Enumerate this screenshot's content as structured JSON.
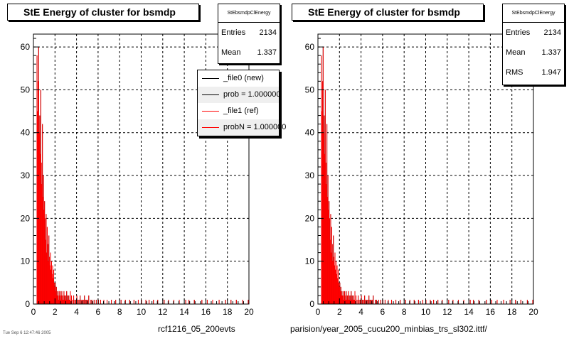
{
  "panels": [
    {
      "id": "left",
      "title": "StE Energy of cluster for bsmdp",
      "stats": {
        "name": "StEbsmdpClEnergy",
        "rows": [
          {
            "label": "Entries",
            "value": "2134"
          },
          {
            "label": "Mean",
            "value": "1.337"
          }
        ]
      },
      "legend": [
        {
          "label": "_file0 (new)",
          "color": "#000000"
        },
        {
          "label": "prob = 1.000000",
          "color": "#000000"
        },
        {
          "label": "_file1 (ref)",
          "color": "#ff0000"
        },
        {
          "label": "probN = 1.000000",
          "color": "#ff0000"
        }
      ],
      "footer": "rcf1216_05_200evts",
      "corner_text": "Tue Sep  6 12:47:46 2005"
    },
    {
      "id": "right",
      "title": "StE Energy of cluster for bsmdp",
      "stats": {
        "name": "StEbsmdpClEnergy",
        "rows": [
          {
            "label": "Entries",
            "value": "2134"
          },
          {
            "label": "Mean",
            "value": "1.337"
          },
          {
            "label": "RMS",
            "value": "1.947"
          }
        ]
      },
      "legend": [],
      "footer": "parision/year_2005_cucu200_minbias_trs_sl302.ittf/",
      "corner_text": ""
    }
  ],
  "chart_data": {
    "type": "bar",
    "title": "StE Energy of cluster for bsmdp",
    "xlim": [
      0,
      20
    ],
    "ylim": [
      0,
      63
    ],
    "xticks": [
      "0",
      "2",
      "4",
      "6",
      "8",
      "10",
      "12",
      "14",
      "16",
      "18",
      "20"
    ],
    "yticks": [
      "0",
      "10",
      "20",
      "30",
      "40",
      "50",
      "60"
    ],
    "grid": true,
    "bin_width": 0.05,
    "series": [
      {
        "name": "_file0 (new)",
        "color": "#000000"
      },
      {
        "name": "_file1 (ref)",
        "color": "#ff0000"
      }
    ],
    "x": [
      0.3,
      0.35,
      0.4,
      0.45,
      0.5,
      0.55,
      0.6,
      0.65,
      0.7,
      0.75,
      0.8,
      0.85,
      0.9,
      0.95,
      1.0,
      1.05,
      1.1,
      1.15,
      1.2,
      1.25,
      1.3,
      1.35,
      1.4,
      1.45,
      1.5,
      1.55,
      1.6,
      1.65,
      1.7,
      1.75,
      1.8,
      1.85,
      1.9,
      1.95,
      2.0,
      2.05,
      2.1,
      2.15,
      2.2,
      2.25,
      2.3,
      2.35,
      2.4,
      2.45,
      2.5,
      2.55,
      2.6,
      2.65,
      2.7,
      2.75,
      2.8,
      2.85,
      2.9,
      2.95,
      3.0,
      3.05,
      3.1,
      3.15,
      3.2,
      3.25,
      3.3,
      3.35,
      3.4,
      3.5,
      3.6,
      3.7,
      3.8,
      3.9,
      4.0,
      4.1,
      4.2,
      4.3,
      4.4,
      4.5,
      4.6,
      4.7,
      4.8,
      4.9,
      5.0,
      5.1,
      5.3,
      5.4,
      5.6,
      5.8,
      6.0,
      6.2,
      6.5,
      6.8,
      7.2,
      7.6,
      8.1,
      8.5,
      8.9,
      9.3,
      9.7,
      10.0,
      10.4,
      10.7,
      11.1,
      11.5,
      12.1,
      12.5,
      13.0,
      13.5,
      14.1,
      14.4,
      14.9,
      15.6,
      16.1,
      16.6,
      17.2,
      17.8,
      18.3,
      18.8,
      19.4,
      19.9
    ],
    "values": [
      58,
      45,
      52,
      60,
      40,
      44,
      35,
      50,
      33,
      28,
      42,
      25,
      30,
      22,
      24,
      20,
      15,
      21,
      12,
      18,
      14,
      10,
      16,
      11,
      9,
      12,
      8,
      10,
      7,
      9,
      6,
      8,
      5,
      4,
      5,
      3,
      4,
      2,
      3,
      2,
      1,
      3,
      2,
      3,
      1,
      2,
      3,
      1,
      2,
      1,
      3,
      2,
      1,
      2,
      1,
      3,
      1,
      2,
      1,
      2,
      1,
      1,
      3,
      2,
      1,
      2,
      1,
      1,
      2,
      1,
      1,
      2,
      1,
      1,
      1,
      2,
      1,
      1,
      1,
      2,
      1,
      1,
      1,
      1,
      1,
      1,
      1,
      1,
      1,
      1,
      1,
      1,
      1,
      1,
      1,
      1,
      1,
      1,
      1,
      1,
      1,
      1,
      1,
      1,
      1,
      1,
      1,
      1,
      1,
      1,
      1,
      1,
      1,
      1,
      1,
      1
    ]
  }
}
